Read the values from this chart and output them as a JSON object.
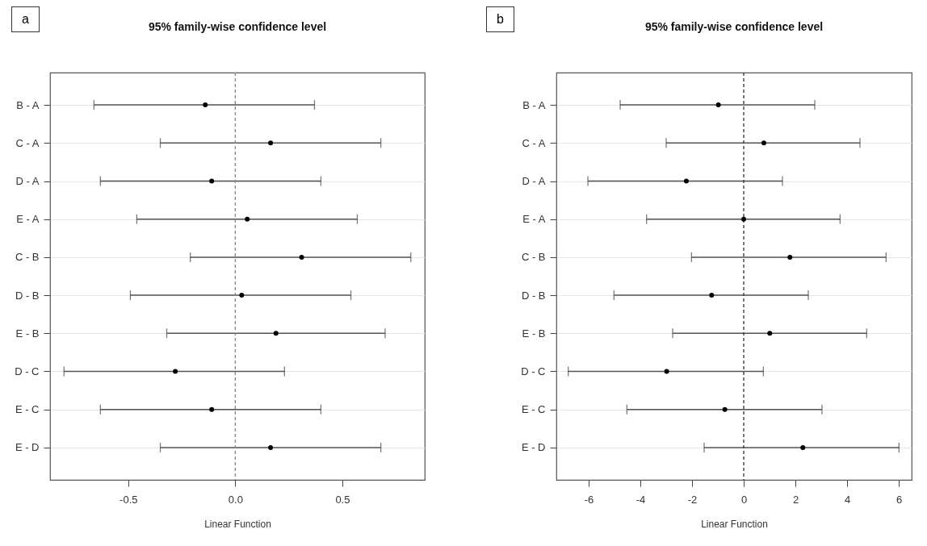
{
  "chart_data": [
    {
      "type": "scatter",
      "orientation": "horizontal",
      "title": "95% family-wise confidence level",
      "xlabel": "Linear Function",
      "annotations": [
        "a"
      ],
      "categories": [
        "B - A",
        "C - A",
        "D - A",
        "E - A",
        "C - B",
        "D - B",
        "E - B",
        "D - C",
        "E - C",
        "E - D"
      ],
      "series": [
        {
          "color": "#000000",
          "values": [
            -0.14,
            0.165,
            -0.11,
            0.056,
            0.31,
            0.03,
            0.19,
            -0.28,
            -0.11,
            0.165
          ],
          "errors": [
            [
              -0.66,
              0.37
            ],
            [
              -0.35,
              0.68
            ],
            [
              -0.63,
              0.4
            ],
            [
              -0.46,
              0.57
            ],
            [
              -0.21,
              0.82
            ],
            [
              -0.49,
              0.54
            ],
            [
              -0.32,
              0.7
            ],
            [
              -0.8,
              0.23
            ],
            [
              -0.63,
              0.4
            ],
            [
              -0.35,
              0.68
            ]
          ]
        }
      ],
      "xlim": [
        -0.865,
        0.885
      ],
      "xticks": [
        -0.5,
        {
          "value": 0,
          "label": "0.0"
        },
        0.5
      ],
      "ref_lines": [
        {
          "axis": "x",
          "value": 0,
          "color": "#888888",
          "line_style": "dashed"
        }
      ],
      "grid": "y",
      "marker": "circle"
    },
    {
      "type": "scatter",
      "orientation": "horizontal",
      "title": "95% family-wise confidence level",
      "xlabel": "Linear Function",
      "annotations": [
        "b"
      ],
      "categories": [
        "B - A",
        "C - A",
        "D - A",
        "E - A",
        "C - B",
        "D - B",
        "E - B",
        "D - C",
        "E - C",
        "E - D"
      ],
      "series": [
        {
          "color": "#000000",
          "values": [
            -0.98,
            0.78,
            -2.22,
            0.0,
            1.79,
            -1.24,
            1.01,
            -2.98,
            -0.73,
            2.29
          ],
          "errors": [
            [
              -4.78,
              2.75
            ],
            [
              -3.0,
              4.5
            ],
            [
              -6.03,
              1.5
            ],
            [
              -3.76,
              3.73
            ],
            [
              -2.02,
              5.51
            ],
            [
              -5.02,
              2.5
            ],
            [
              -2.75,
              4.76
            ],
            [
              -6.79,
              0.76
            ],
            [
              -4.52,
              3.03
            ],
            [
              -1.53,
              6.01
            ]
          ]
        }
      ],
      "xlim": [
        -7.25,
        6.5
      ],
      "xticks": [
        -6,
        -4,
        -2,
        0,
        2,
        4,
        6
      ],
      "ref_lines": [
        {
          "axis": "x",
          "value": 0,
          "color": "#333333",
          "line_style": "dashed"
        }
      ],
      "grid": "y",
      "marker": "circle"
    }
  ]
}
